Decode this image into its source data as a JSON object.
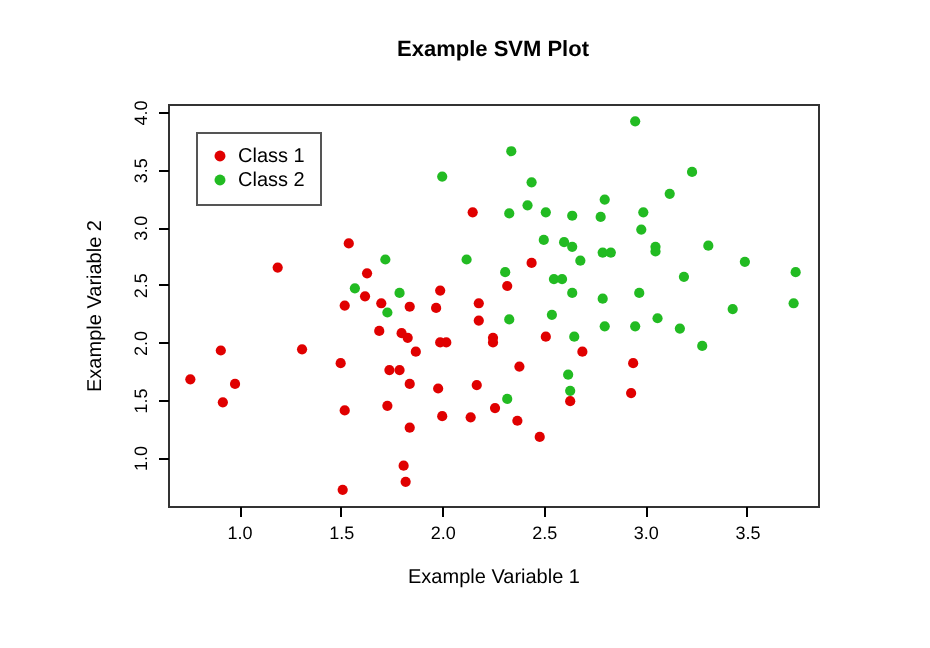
{
  "chart_data": {
    "type": "scatter",
    "title": "Example SVM Plot",
    "xlabel": "Example Variable 1",
    "ylabel": "Example Variable 2",
    "xlim": [
      0.65,
      3.85
    ],
    "ylim": [
      0.58,
      4.07
    ],
    "xticks": [
      {
        "value": 1,
        "label": "1.0"
      },
      {
        "value": 1.5,
        "label": "1.5"
      },
      {
        "value": 2,
        "label": "2.0"
      },
      {
        "value": 2.5,
        "label": "2.5"
      },
      {
        "value": 3,
        "label": "3.0"
      },
      {
        "value": 3.5,
        "label": "3.5"
      }
    ],
    "yticks": [
      {
        "value": 1,
        "label": "1.0"
      },
      {
        "value": 1.5,
        "label": "1.5"
      },
      {
        "value": 2,
        "label": "2.0"
      },
      {
        "value": 2.5,
        "label": "2.5"
      },
      {
        "value": 3,
        "label": "3.0"
      },
      {
        "value": 3.5,
        "label": "3.5"
      },
      {
        "value": 4,
        "label": "4.0"
      }
    ],
    "grid": false,
    "legend": "top left",
    "marker": "circle",
    "series": [
      {
        "name": "Class 1",
        "color": "#e00000",
        "x": [
          0.91,
          1.31,
          0.76,
          0.98,
          0.92,
          1.5,
          1.52,
          1.51,
          1.52,
          1.62,
          1.7,
          1.84,
          1.97,
          1.99,
          1.69,
          1.8,
          1.83,
          1.87,
          1.99,
          2.02,
          1.74,
          1.79,
          1.84,
          1.73,
          1.84,
          1.81,
          1.82,
          1.98,
          2.0,
          2.14,
          2.17,
          2.26,
          2.37,
          2.18,
          2.18,
          2.25,
          2.25,
          2.32,
          2.38,
          1.19,
          1.54,
          1.63,
          2.15,
          2.44,
          2.51,
          2.69,
          2.94,
          2.93,
          2.63,
          2.48
        ],
        "values": [
          1.93,
          1.94,
          1.68,
          1.64,
          1.48,
          1.82,
          1.41,
          0.72,
          2.32,
          2.4,
          2.34,
          2.31,
          2.3,
          2.45,
          2.1,
          2.08,
          2.04,
          1.92,
          2.0,
          2.0,
          1.76,
          1.76,
          1.64,
          1.45,
          1.26,
          0.93,
          0.79,
          1.6,
          1.36,
          1.35,
          1.63,
          1.43,
          1.32,
          2.34,
          2.19,
          2.04,
          2.0,
          2.49,
          1.79,
          2.65,
          2.86,
          2.6,
          3.13,
          2.69,
          2.05,
          1.92,
          1.82,
          1.56,
          1.49,
          1.18
        ]
      },
      {
        "name": "Class 2",
        "color": "#22bb22",
        "x": [
          1.57,
          1.79,
          1.73,
          2.33,
          2.32,
          1.72,
          2.0,
          2.12,
          2.31,
          2.34,
          2.33,
          2.95,
          2.44,
          3.23,
          2.8,
          3.12,
          2.42,
          2.51,
          2.64,
          2.78,
          2.99,
          2.98,
          2.5,
          2.6,
          2.64,
          2.68,
          2.79,
          2.83,
          3.05,
          3.05,
          3.31,
          3.49,
          3.74,
          3.73,
          2.55,
          2.59,
          3.19,
          2.64,
          2.79,
          2.97,
          3.43,
          2.54,
          2.8,
          2.95,
          3.06,
          3.17,
          3.28,
          2.65,
          2.62,
          2.63
        ],
        "values": [
          2.47,
          2.43,
          2.26,
          2.2,
          1.51,
          2.72,
          3.44,
          2.72,
          2.61,
          3.66,
          3.12,
          3.92,
          3.39,
          3.48,
          3.24,
          3.29,
          3.19,
          3.13,
          3.1,
          3.09,
          3.13,
          2.98,
          2.89,
          2.87,
          2.83,
          2.71,
          2.78,
          2.78,
          2.83,
          2.79,
          2.84,
          2.7,
          2.61,
          2.34,
          2.55,
          2.55,
          2.57,
          2.43,
          2.38,
          2.43,
          2.29,
          2.24,
          2.14,
          2.14,
          2.21,
          2.12,
          1.97,
          2.05,
          1.72,
          1.58
        ]
      }
    ]
  }
}
